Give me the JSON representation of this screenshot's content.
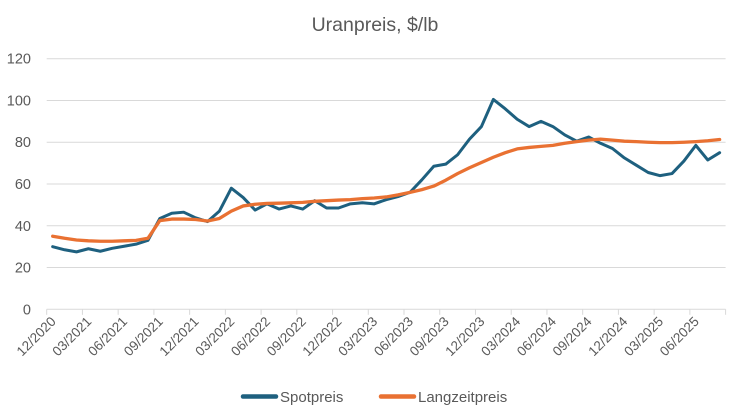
{
  "chart_data": {
    "type": "line",
    "title": "Uranpreis, $/lb",
    "categories": [
      "12/2020",
      "01/2021",
      "02/2021",
      "03/2021",
      "04/2021",
      "05/2021",
      "06/2021",
      "07/2021",
      "08/2021",
      "09/2021",
      "10/2021",
      "11/2021",
      "12/2021",
      "01/2022",
      "02/2022",
      "03/2022",
      "04/2022",
      "05/2022",
      "06/2022",
      "07/2022",
      "08/2022",
      "09/2022",
      "10/2022",
      "11/2022",
      "12/2022",
      "01/2023",
      "02/2023",
      "03/2023",
      "04/2023",
      "05/2023",
      "06/2023",
      "07/2023",
      "08/2023",
      "09/2023",
      "10/2023",
      "11/2023",
      "12/2023",
      "01/2024",
      "02/2024",
      "03/2024",
      "04/2024",
      "05/2024",
      "06/2024",
      "07/2024",
      "08/2024",
      "09/2024",
      "10/2024",
      "11/2024",
      "12/2024",
      "01/2025",
      "02/2025",
      "03/2025",
      "04/2025",
      "05/2025",
      "06/2025",
      "07/2025",
      "08/2025"
    ],
    "series": [
      {
        "name": "Spotpreis",
        "color": "#1E607F",
        "values": [
          30,
          28.5,
          27.5,
          29,
          27.8,
          29.2,
          30.2,
          31.2,
          33,
          43.5,
          46,
          46.5,
          43.8,
          42,
          47,
          58,
          53.5,
          47.5,
          50.5,
          48,
          49.5,
          48,
          52,
          48.5,
          48.5,
          50.5,
          51,
          50.5,
          52.5,
          54,
          56,
          62,
          68.5,
          69.5,
          74,
          81.5,
          87.5,
          100.5,
          96,
          91,
          87.5,
          90,
          87.5,
          83.5,
          80.5,
          82.5,
          79.5,
          77,
          72.5,
          69,
          65.5,
          64,
          65,
          71,
          78.5,
          71.5,
          75
        ]
      },
      {
        "name": "Langzeitpreis",
        "color": "#E97132",
        "values": [
          35,
          34,
          33.2,
          32.8,
          32.6,
          32.6,
          32.8,
          33,
          34,
          42.5,
          43.2,
          43.2,
          43,
          42.3,
          43.5,
          47,
          49.5,
          50.3,
          50.7,
          50.8,
          51,
          51.2,
          51.7,
          52,
          52.3,
          52.5,
          53,
          53.3,
          53.8,
          54.8,
          56,
          57.3,
          59,
          61.8,
          65,
          67.8,
          70.3,
          72.8,
          75,
          76.8,
          77.5,
          78,
          78.5,
          79.5,
          80.3,
          81,
          81.5,
          81,
          80.5,
          80.3,
          80,
          79.8,
          79.8,
          80,
          80.3,
          80.7,
          81.3
        ]
      }
    ],
    "ylim": [
      0,
      120
    ],
    "y_ticks": [
      0,
      20,
      40,
      60,
      80,
      100,
      120
    ],
    "x_tick_labels": [
      "12/2020",
      "03/2021",
      "06/2021",
      "09/2021",
      "12/2021",
      "03/2022",
      "06/2022",
      "09/2022",
      "12/2022",
      "03/2023",
      "06/2023",
      "09/2023",
      "12/2023",
      "03/2024",
      "06/2024",
      "09/2024",
      "12/2024",
      "03/2025",
      "06/2025"
    ],
    "x_label_interval": 3,
    "grid": true,
    "legend_position": "bottom",
    "gridline_color": "#D9D9D9",
    "label_color": "#595959"
  }
}
